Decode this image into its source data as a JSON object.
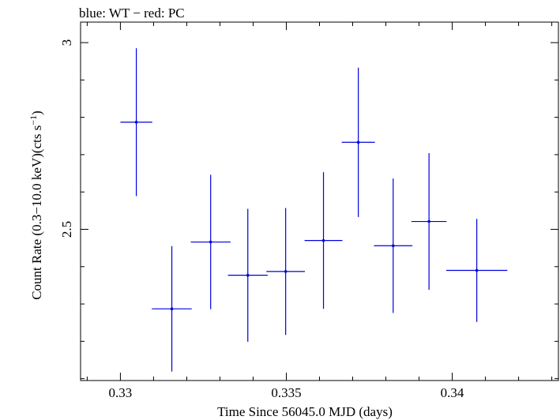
{
  "chart_data": {
    "type": "scatter",
    "title": "blue: WT − red: PC",
    "xlabel": "Time Since 56045.0 MJD (days)",
    "ylabel": "Count Rate (0.3−10.0 keV)(cts s",
    "ylabel_sup": "−1",
    "ylabel_close": ")",
    "xlim": [
      0.3288,
      0.3432
    ],
    "ylim": [
      2.095,
      3.055
    ],
    "x_ticks": [
      0.33,
      0.335,
      0.34
    ],
    "x_tick_labels": [
      "0.33",
      "0.335",
      "0.34"
    ],
    "y_ticks": [
      2.5,
      3.0
    ],
    "y_tick_labels": [
      "2.5",
      "3"
    ],
    "grid": false,
    "series": [
      {
        "color": "#0000dd",
        "points": [
          {
            "x": 0.33048,
            "xerr": 0.00048,
            "y": 2.787,
            "yerr": 0.198
          },
          {
            "x": 0.33155,
            "xerr": 0.0006,
            "y": 2.287,
            "yerr": 0.168
          },
          {
            "x": 0.33272,
            "xerr": 0.0006,
            "y": 2.466,
            "yerr": 0.18
          },
          {
            "x": 0.33384,
            "xerr": 0.0006,
            "y": 2.377,
            "yerr": 0.178
          },
          {
            "x": 0.33498,
            "xerr": 0.00058,
            "y": 2.387,
            "yerr": 0.17
          },
          {
            "x": 0.33612,
            "xerr": 0.00057,
            "y": 2.47,
            "yerr": 0.183
          },
          {
            "x": 0.33717,
            "xerr": 0.0005,
            "y": 2.733,
            "yerr": 0.2
          },
          {
            "x": 0.33822,
            "xerr": 0.00058,
            "y": 2.456,
            "yerr": 0.18
          },
          {
            "x": 0.3393,
            "xerr": 0.00053,
            "y": 2.521,
            "yerr": 0.183
          },
          {
            "x": 0.34074,
            "xerr": 0.00092,
            "y": 2.39,
            "yerr": 0.138
          }
        ]
      }
    ]
  }
}
